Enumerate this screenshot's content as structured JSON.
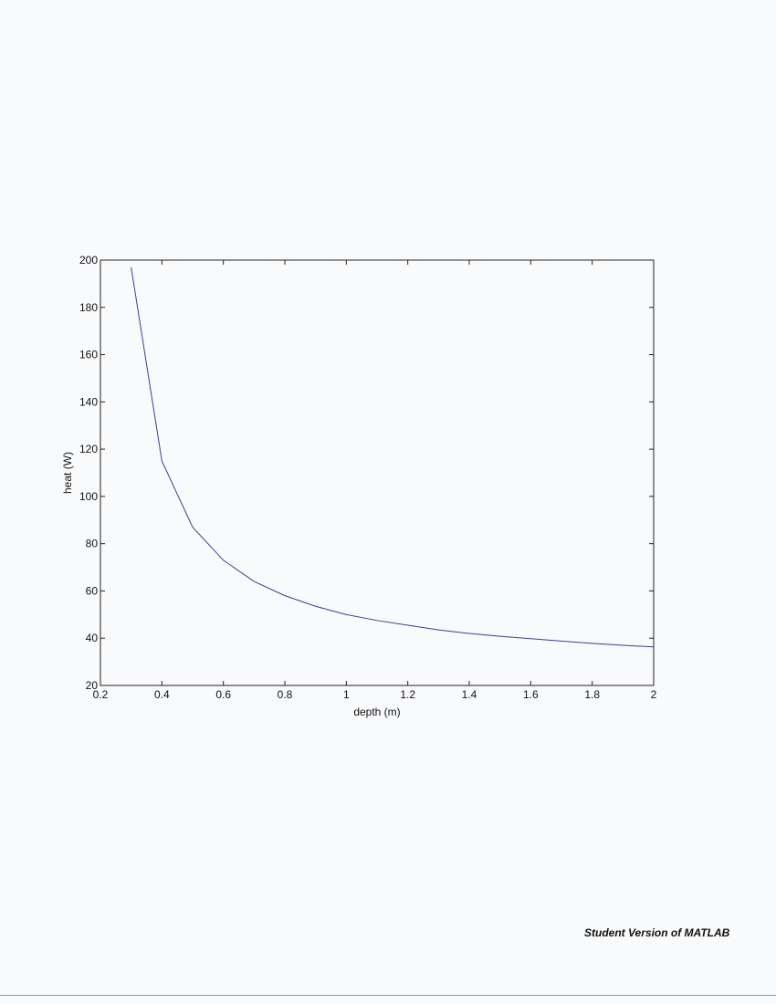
{
  "footer": {
    "text": "Student Version of MATLAB"
  },
  "colors": {
    "line": "#3a3f8f",
    "axes": "#222222",
    "background": "#f9fafc"
  },
  "chart_data": {
    "type": "line",
    "title": "",
    "xlabel": "depth (m)",
    "ylabel": "heat (W)",
    "xlim": [
      0.2,
      2
    ],
    "ylim": [
      20,
      200
    ],
    "xticks": [
      0.2,
      0.4,
      0.6,
      0.8,
      1,
      1.2,
      1.4,
      1.6,
      1.8,
      2
    ],
    "xtick_labels": [
      "0.2",
      "0.4",
      "0.6",
      "0.8",
      "1",
      "1.2",
      "1.4",
      "1.6",
      "1.8",
      "2"
    ],
    "yticks": [
      20,
      40,
      60,
      80,
      100,
      120,
      140,
      160,
      180,
      200
    ],
    "ytick_labels": [
      "20",
      "40",
      "60",
      "80",
      "100",
      "120",
      "140",
      "160",
      "180",
      "200"
    ],
    "grid": false,
    "series": [
      {
        "x": [
          0.3,
          0.4,
          0.5,
          0.6,
          0.7,
          0.8,
          0.9,
          1.0,
          1.1,
          1.2,
          1.3,
          1.4,
          1.5,
          1.6,
          1.7,
          1.8,
          1.9,
          2.0
        ],
        "y": [
          197,
          115,
          87,
          73,
          64,
          58,
          53.5,
          50,
          47.5,
          45.5,
          43.5,
          42,
          40.8,
          39.8,
          38.8,
          37.8,
          37,
          36.3
        ]
      }
    ]
  }
}
